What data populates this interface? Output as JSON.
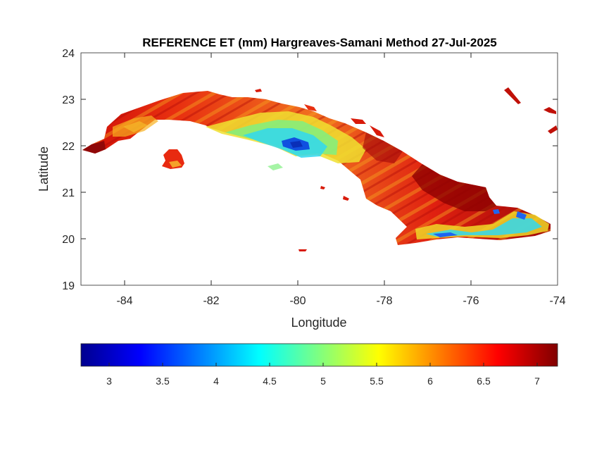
{
  "title": "REFERENCE ET (mm) Hargreaves-Samani Method  27-Jul-2025",
  "xaxis": {
    "label": "Longitude",
    "range": [
      -85,
      -74
    ],
    "ticks": [
      "-84",
      "-82",
      "-80",
      "-78",
      "-76",
      "-74"
    ]
  },
  "yaxis": {
    "label": "Latitude",
    "range": [
      19,
      24
    ],
    "ticks": [
      "19",
      "20",
      "21",
      "22",
      "23",
      "24"
    ]
  },
  "colorbar": {
    "colormap": "jet",
    "range": [
      2.72,
      7.18
    ],
    "ticks": [
      "3",
      "3.5",
      "4",
      "4.5",
      "5",
      "5.5",
      "6",
      "6.5",
      "7"
    ]
  },
  "colors": {
    "low": "#00008f",
    "high": "#800000",
    "dominant": "#e8110c"
  }
}
